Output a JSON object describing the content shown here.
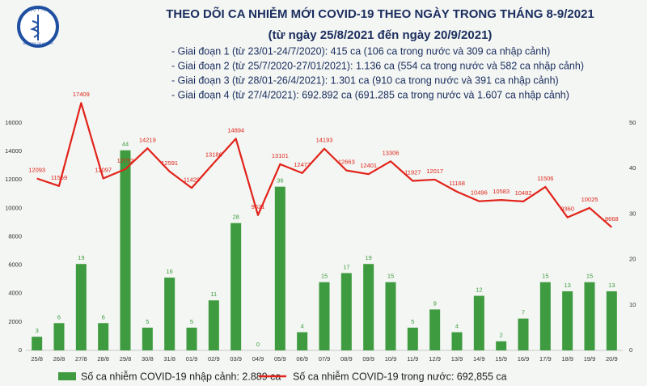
{
  "logo": {
    "top": "BỘ Y TẾ",
    "bottom": "MINISTRY OF HEALTH"
  },
  "chart_data": {
    "type": "bar_line",
    "title": "THEO DÕI CA NHIỄM MỚI COVID-19 THEO NGÀY TRONG THÁNG 8-9/2021",
    "subtitle": "(từ ngày 25/8/2021 đến ngày 20/9/2021)",
    "annotations": [
      "- Giai đoạn 1 (từ 23/01-24/7/2020): 415 ca (106 ca trong nước và 309 ca nhập cảnh)",
      "- Giai đoạn 2 (từ 25/7/2020-27/01/2021): 1.136 ca (554 ca trong nước và 582 ca nhập cảnh)",
      "- Giai đoạn 3 (từ 28/01-26/4/2021): 1.301 ca (910 ca trong nước và 391 ca nhập cảnh)",
      "- Giai đoạn 4 (từ 27/4/2021): 692.892 ca (691.285 ca trong nước và 1.607 ca nhập cảnh)"
    ],
    "categories": [
      "25/8",
      "26/8",
      "27/8",
      "28/8",
      "29/8",
      "30/8",
      "31/8",
      "01/9",
      "02/9",
      "03/9",
      "04/9",
      "05/9",
      "06/9",
      "07/9",
      "08/9",
      "09/9",
      "10/9",
      "11/9",
      "12/9",
      "13/9",
      "14/9",
      "15/9",
      "16/9",
      "17/9",
      "18/9",
      "19/9",
      "20/9"
    ],
    "series": [
      {
        "name": "Số ca nhiễm COVID-19 nhập cảnh: 2.889 ca",
        "type": "bar",
        "axis": "y2",
        "color": "#3f9b3f",
        "values": [
          3,
          6,
          19,
          6,
          44,
          5,
          16,
          5,
          11,
          28,
          0,
          36,
          4,
          15,
          17,
          19,
          15,
          5,
          9,
          4,
          12,
          2,
          7,
          15,
          13,
          15,
          13
        ]
      },
      {
        "name": "Số ca nhiễm COVID-19 trong nước: 692,855 ca",
        "type": "line",
        "color": "#e2231a",
        "values": [
          12093,
          11569,
          17409,
          12097,
          12752,
          14219,
          12591,
          11429,
          13186,
          14894,
          9521,
          13101,
          12477,
          14193,
          12663,
          12401,
          13306,
          11927,
          12017,
          11168,
          10496,
          10583,
          10482,
          11506,
          9360,
          10025,
          8668
        ]
      }
    ],
    "ylim": [
      0,
      16000
    ],
    "yticks": [
      0,
      2000,
      4000,
      6000,
      8000,
      10000,
      12000,
      14000,
      16000
    ],
    "y2lim": [
      0,
      50
    ],
    "y2ticks": [
      0,
      10,
      20,
      30,
      40,
      50
    ]
  }
}
